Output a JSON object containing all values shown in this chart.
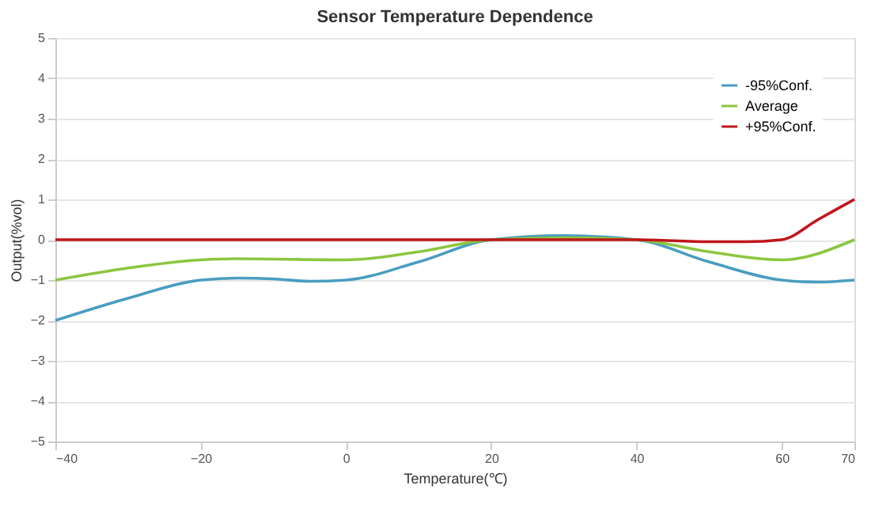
{
  "chart_data": {
    "type": "line",
    "title": "Sensor  Temperature Dependence",
    "xlabel": "Temperature(℃)",
    "ylabel": "Output(%vol)",
    "xlim": [
      -40,
      70
    ],
    "xticks": [
      -40,
      -20,
      0,
      20,
      40,
      60,
      70
    ],
    "ylim": [
      -5,
      5
    ],
    "yticks": [
      -5,
      -4,
      -3,
      -2,
      -1,
      0,
      1,
      2,
      3,
      4,
      5
    ],
    "grid": "y",
    "legend": "top right",
    "marker": "none",
    "line_style": "solid",
    "series": [
      {
        "name": "-95%Conf.",
        "color": "#4a9dc0",
        "x": [
          -40,
          -30,
          -20,
          -15,
          -10,
          -5,
          0,
          10,
          20,
          30,
          40,
          50,
          60,
          65,
          70
        ],
        "values": [
          -2,
          -1.45,
          -1,
          -0.95,
          -0.97,
          -1.03,
          -1,
          -0.55,
          0,
          0.1,
          0,
          -0.55,
          -1,
          -1.05,
          -1
        ]
      },
      {
        "name": "Average",
        "color": "#8cc63f",
        "x": [
          -40,
          -30,
          -20,
          -15,
          -10,
          0,
          10,
          20,
          30,
          40,
          50,
          60,
          70
        ],
        "values": [
          -1,
          -0.7,
          -0.5,
          -0.47,
          -0.48,
          -0.5,
          -0.3,
          0,
          0.05,
          0,
          -0.3,
          -0.5,
          0
        ]
      },
      {
        "name": "+95%Conf.",
        "color": "#c0151b",
        "x": [
          -40,
          -20,
          0,
          20,
          40,
          50,
          55,
          60,
          65,
          70
        ],
        "values": [
          0,
          0,
          0,
          0,
          0,
          -0.05,
          -0.05,
          0,
          0.5,
          1
        ]
      }
    ]
  }
}
